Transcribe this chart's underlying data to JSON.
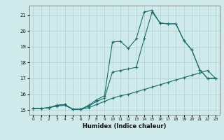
{
  "xlabel": "Humidex (Indice chaleur)",
  "bg_color": "#ceeaea",
  "grid_color": "#b8d8d8",
  "line_color": "#1a6b6b",
  "xlim": [
    -0.5,
    23.5
  ],
  "ylim": [
    14.7,
    21.6
  ],
  "xticks": [
    0,
    1,
    2,
    3,
    4,
    5,
    6,
    7,
    8,
    9,
    10,
    11,
    12,
    13,
    14,
    15,
    16,
    17,
    18,
    19,
    20,
    21,
    22,
    23
  ],
  "yticks": [
    15,
    16,
    17,
    18,
    19,
    20,
    21
  ],
  "line1_x": [
    0,
    1,
    2,
    3,
    4,
    5,
    6,
    7,
    8,
    9,
    10,
    11,
    12,
    13,
    14,
    15,
    16,
    17,
    18,
    19,
    20,
    21,
    22,
    23
  ],
  "line1_y": [
    15.1,
    15.1,
    15.15,
    15.25,
    15.3,
    15.05,
    15.05,
    15.15,
    15.35,
    15.55,
    15.75,
    15.9,
    16.0,
    16.15,
    16.3,
    16.45,
    16.6,
    16.75,
    16.9,
    17.05,
    17.2,
    17.35,
    17.5,
    17.0
  ],
  "line2_x": [
    0,
    1,
    2,
    3,
    4,
    5,
    6,
    7,
    8,
    9,
    10,
    11,
    12,
    13,
    14,
    15,
    16,
    17,
    18,
    19,
    20,
    21,
    22,
    23
  ],
  "line2_y": [
    15.1,
    15.1,
    15.15,
    15.3,
    15.35,
    15.05,
    15.05,
    15.25,
    15.55,
    15.75,
    17.4,
    17.5,
    17.6,
    17.7,
    19.5,
    21.2,
    20.5,
    20.45,
    20.45,
    19.4,
    18.8,
    17.55,
    17.0,
    17.0
  ],
  "line3_x": [
    0,
    1,
    2,
    3,
    4,
    5,
    6,
    7,
    8,
    9,
    10,
    11,
    12,
    13,
    14,
    15,
    16,
    17,
    18,
    19,
    20,
    21,
    22,
    23
  ],
  "line3_y": [
    15.1,
    15.1,
    15.15,
    15.3,
    15.35,
    15.05,
    15.05,
    15.3,
    15.65,
    15.9,
    19.3,
    19.35,
    18.9,
    19.5,
    21.2,
    21.3,
    20.5,
    20.45,
    20.45,
    19.4,
    18.8,
    17.55,
    17.0,
    17.0
  ]
}
